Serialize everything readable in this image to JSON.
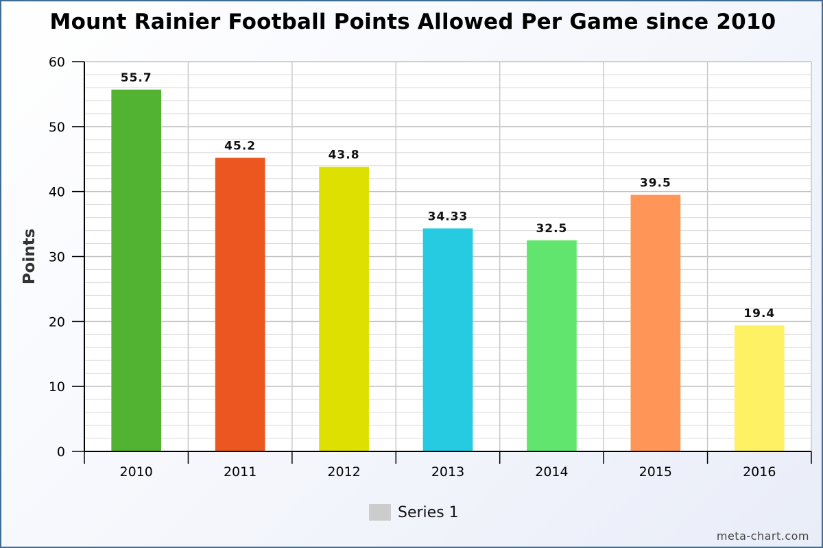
{
  "chart_data": {
    "type": "bar",
    "title": "Mount Rainier Football Points Allowed Per Game since 2010",
    "xlabel": "",
    "ylabel": "Points",
    "categories": [
      "2010",
      "2011",
      "2012",
      "2013",
      "2014",
      "2015",
      "2016"
    ],
    "series": [
      {
        "name": "Series 1",
        "values": [
          55.7,
          45.2,
          43.8,
          34.33,
          32.5,
          39.5,
          19.4
        ],
        "data_labels": [
          "55.7",
          "45.2",
          "43.8",
          "34.33",
          "32.5",
          "39.5",
          "19.4"
        ]
      }
    ],
    "bar_colors": [
      "#52b333",
      "#eb571f",
      "#dde000",
      "#26cbe2",
      "#62e56f",
      "#ff9556",
      "#fef163"
    ],
    "ylim": [
      0,
      60
    ],
    "yticks": [
      0,
      10,
      20,
      30,
      40,
      50,
      60
    ],
    "ytick_labels": [
      "0",
      "10",
      "20",
      "30",
      "40",
      "50",
      "60"
    ],
    "grid": true,
    "legend": {
      "placement": "bottom",
      "label": "Series 1",
      "swatch_color": "#cccccc"
    }
  },
  "watermark": "meta-chart.com"
}
